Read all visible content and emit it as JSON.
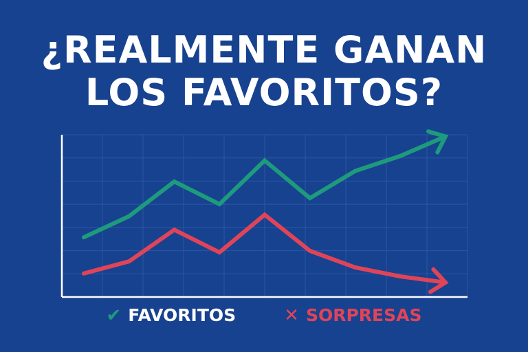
{
  "title": {
    "line1": "¿REALMENTE GANAN",
    "line2": "LOS FAVORITOS?"
  },
  "legend": {
    "favoritos": {
      "mark": "✔",
      "label": "FAVORITOS"
    },
    "sorpresas": {
      "mark": "✕",
      "label": "SORPRESAS"
    }
  },
  "colors": {
    "background": "#17428f",
    "favoritos": "#1e9a7d",
    "sorpresas": "#e04458",
    "axis": "#ffffff",
    "grid": "#2a57a6"
  },
  "chart_data": {
    "type": "line",
    "x": [
      0,
      1,
      2,
      3,
      4,
      5,
      6,
      7,
      8
    ],
    "xlim": [
      0,
      10
    ],
    "ylim": [
      0,
      10
    ],
    "grid": true,
    "legend_position": "bottom",
    "series": [
      {
        "name": "FAVORITOS",
        "color": "#1e9a7d",
        "arrow": "up",
        "values": [
          3.6,
          5.0,
          7.3,
          5.8,
          8.7,
          6.2,
          8.0,
          9.0,
          10.3
        ]
      },
      {
        "name": "SORPRESAS",
        "color": "#e04458",
        "arrow": "down",
        "values": [
          1.2,
          2.0,
          4.1,
          2.6,
          5.1,
          2.7,
          1.6,
          1.0,
          0.6
        ]
      }
    ]
  }
}
